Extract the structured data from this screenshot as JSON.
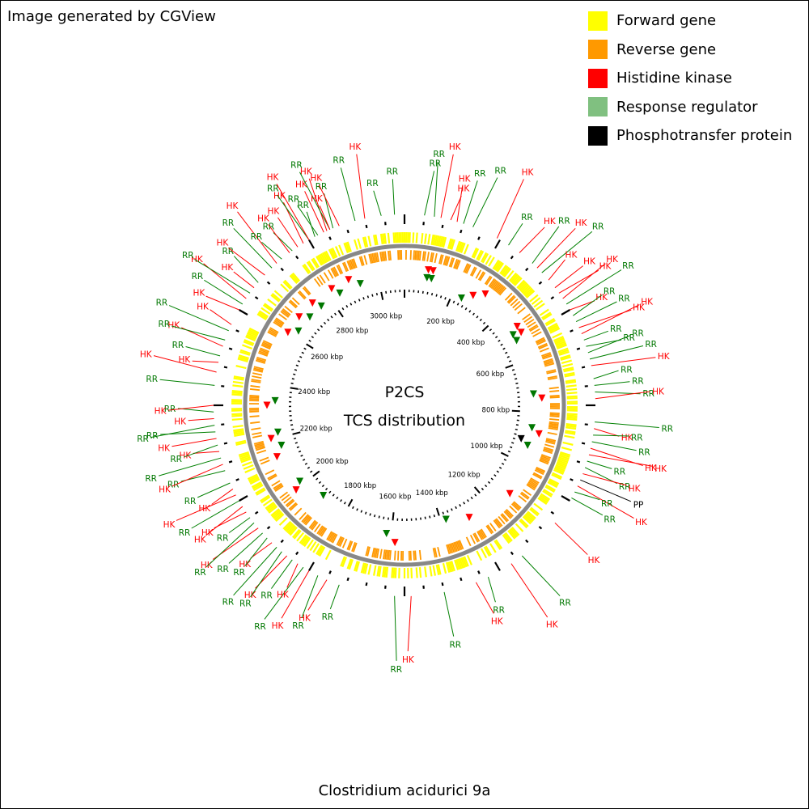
{
  "credit": "Image generated by CGView",
  "legend": [
    {
      "label": "Forward gene",
      "color": "#ffff00"
    },
    {
      "label": "Reverse gene",
      "color": "#ff9900"
    },
    {
      "label": "Histidine kinase",
      "color": "#ff0000"
    },
    {
      "label": "Response regulator",
      "color": "#80c080"
    },
    {
      "label": "Phosphotransfer protein",
      "color": "#000000"
    }
  ],
  "map": {
    "title": "P2CS",
    "subtitle": "TCS distribution",
    "genome_length_kbp": 3100,
    "tick_labels": [
      "200 kbp",
      "400 kbp",
      "600 kbp",
      "800 kbp",
      "1000 kbp",
      "1200 kbp",
      "1400 kbp",
      "1600 kbp",
      "1800 kbp",
      "2000 kbp",
      "2200 kbp",
      "2400 kbp",
      "2600 kbp",
      "2800 kbp",
      "3000 kbp"
    ],
    "tick_values_kbp": [
      200,
      400,
      600,
      800,
      1000,
      1200,
      1400,
      1600,
      1800,
      2000,
      2200,
      2400,
      2600,
      2800,
      3000
    ]
  },
  "organism": "Clostridium acidurici 9a",
  "features": [
    {
      "type": "RR",
      "angle": -36
    },
    {
      "type": "HK",
      "angle": -34
    },
    {
      "type": "HK",
      "angle": -32
    },
    {
      "type": "RR",
      "angle": -30
    },
    {
      "type": "HK",
      "angle": -30
    },
    {
      "type": "RR",
      "angle": -28
    },
    {
      "type": "RR",
      "angle": -27
    },
    {
      "type": "HK",
      "angle": -25
    },
    {
      "type": "HK",
      "angle": -24
    },
    {
      "type": "RR",
      "angle": -23
    },
    {
      "type": "HK",
      "angle": -23
    },
    {
      "type": "RR",
      "angle": -22
    },
    {
      "type": "HK",
      "angle": -20
    },
    {
      "type": "RR",
      "angle": -15
    },
    {
      "type": "HK",
      "angle": -12
    },
    {
      "type": "RR",
      "angle": -7
    },
    {
      "type": "RR",
      "angle": -3
    },
    {
      "type": "RR",
      "angle": 6
    },
    {
      "type": "RR",
      "angle": 9
    },
    {
      "type": "HK",
      "angle": 11
    },
    {
      "type": "HK",
      "angle": 14
    },
    {
      "type": "HK",
      "angle": 16
    },
    {
      "type": "RR",
      "angle": 18
    },
    {
      "type": "RR",
      "angle": 21
    },
    {
      "type": "HK",
      "angle": 29
    },
    {
      "type": "RR",
      "angle": 33
    },
    {
      "type": "HK",
      "angle": 37
    },
    {
      "type": "RR",
      "angle": 42
    },
    {
      "type": "HK",
      "angle": 44
    },
    {
      "type": "RR",
      "angle": 46
    },
    {
      "type": "HK",
      "angle": 49
    },
    {
      "type": "HK",
      "angle": 52
    },
    {
      "type": "HK",
      "angle": 54
    },
    {
      "type": "HK",
      "angle": 56
    },
    {
      "type": "RR",
      "angle": 58
    },
    {
      "type": "HK",
      "angle": 60
    },
    {
      "type": "RR",
      "angle": 62
    },
    {
      "type": "RR",
      "angle": 64
    },
    {
      "type": "HK",
      "angle": 66
    },
    {
      "type": "HK",
      "angle": 68
    },
    {
      "type": "RR",
      "angle": 70
    },
    {
      "type": "RR",
      "angle": 72
    },
    {
      "type": "RR",
      "angle": 74
    },
    {
      "type": "RR",
      "angle": 76
    },
    {
      "type": "HK",
      "angle": 78
    },
    {
      "type": "RR",
      "angle": 82
    },
    {
      "type": "RR",
      "angle": 84
    },
    {
      "type": "RR",
      "angle": 86
    },
    {
      "type": "HK",
      "angle": 88
    },
    {
      "type": "RR",
      "angle": 95
    },
    {
      "type": "HK",
      "angle": 97
    },
    {
      "type": "RR",
      "angle": 99
    },
    {
      "type": "RR",
      "angle": 101
    },
    {
      "type": "HK",
      "angle": 103
    },
    {
      "type": "HK",
      "angle": 105
    },
    {
      "type": "RR",
      "angle": 107
    },
    {
      "type": "RR",
      "angle": 109
    },
    {
      "type": "HK",
      "angle": 111
    },
    {
      "type": "PP",
      "angle": 113
    },
    {
      "type": "HK",
      "angle": 115
    },
    {
      "type": "RR",
      "angle": 117
    },
    {
      "type": "RR",
      "angle": 119
    },
    {
      "type": "HK",
      "angle": 128
    },
    {
      "type": "RR",
      "angle": 142
    },
    {
      "type": "HK",
      "angle": 146
    },
    {
      "type": "RR",
      "angle": 154
    },
    {
      "type": "HK",
      "angle": 158
    },
    {
      "type": "RR",
      "angle": 168
    },
    {
      "type": "HK",
      "angle": 178
    },
    {
      "type": "RR",
      "angle": 183
    },
    {
      "type": "RR",
      "angle": 200
    },
    {
      "type": "HK",
      "angle": 204
    },
    {
      "type": "RR",
      "angle": 207
    },
    {
      "type": "HK",
      "angle": 210
    },
    {
      "type": "RR",
      "angle": 212
    },
    {
      "type": "HK",
      "angle": 214
    },
    {
      "type": "RR",
      "angle": 216
    },
    {
      "type": "HK",
      "angle": 218
    },
    {
      "type": "RR",
      "angle": 220
    },
    {
      "type": "RR",
      "angle": 222
    },
    {
      "type": "HK",
      "angle": 224
    },
    {
      "type": "RR",
      "angle": 226
    },
    {
      "type": "RR",
      "angle": 228
    },
    {
      "type": "HK",
      "angle": 230
    },
    {
      "type": "RR",
      "angle": 232
    },
    {
      "type": "RR",
      "angle": 234
    },
    {
      "type": "HK",
      "angle": 236
    },
    {
      "type": "HK",
      "angle": 238
    },
    {
      "type": "RR",
      "angle": 240
    },
    {
      "type": "HK",
      "angle": 242
    },
    {
      "type": "HK",
      "angle": 244
    },
    {
      "type": "RR",
      "angle": 246
    },
    {
      "type": "RR",
      "angle": 250
    },
    {
      "type": "HK",
      "angle": 252
    },
    {
      "type": "RR",
      "angle": 254
    },
    {
      "type": "HK",
      "angle": 256
    },
    {
      "type": "RR",
      "angle": 258
    },
    {
      "type": "HK",
      "angle": 260
    },
    {
      "type": "RR",
      "angle": 262
    },
    {
      "type": "RR",
      "angle": 264
    },
    {
      "type": "HK",
      "angle": 266
    },
    {
      "type": "RR",
      "angle": 268
    },
    {
      "type": "HK",
      "angle": 270
    },
    {
      "type": "RR",
      "angle": 276
    },
    {
      "type": "HK",
      "angle": 280
    },
    {
      "type": "HK",
      "angle": 283
    },
    {
      "type": "RR",
      "angle": 285
    },
    {
      "type": "HK",
      "angle": 288
    },
    {
      "type": "RR",
      "angle": 290
    },
    {
      "type": "RR",
      "angle": 293
    },
    {
      "type": "HK",
      "angle": 295
    },
    {
      "type": "HK",
      "angle": 300
    },
    {
      "type": "RR",
      "angle": 302
    },
    {
      "type": "HK",
      "angle": 304
    },
    {
      "type": "RR",
      "angle": 306
    },
    {
      "type": "HK",
      "angle": 308
    },
    {
      "type": "RR",
      "angle": 310
    },
    {
      "type": "HK",
      "angle": 313
    },
    {
      "type": "RR",
      "angle": 316
    },
    {
      "type": "HK",
      "angle": 318
    },
    {
      "type": "RR",
      "angle": 320
    },
    {
      "type": "HK",
      "angle": 323
    }
  ],
  "markers": [
    {
      "type": "HK",
      "angle": 10,
      "track": 1
    },
    {
      "type": "HK",
      "angle": 12,
      "track": 1
    },
    {
      "type": "RR",
      "angle": 10,
      "track": 2
    },
    {
      "type": "RR",
      "angle": 12,
      "track": 2
    },
    {
      "type": "RR",
      "angle": 28,
      "track": 3
    },
    {
      "type": "HK",
      "angle": 32,
      "track": 2
    },
    {
      "type": "HK",
      "angle": 36,
      "track": 1
    },
    {
      "type": "HK",
      "angle": 55,
      "track": 1
    },
    {
      "type": "HK",
      "angle": 58,
      "track": 1
    },
    {
      "type": "RR",
      "angle": 57,
      "track": 2
    },
    {
      "type": "RR",
      "angle": 60,
      "track": 2
    },
    {
      "type": "RR",
      "angle": 85,
      "track": 2
    },
    {
      "type": "HK",
      "angle": 87,
      "track": 1
    },
    {
      "type": "RR",
      "angle": 100,
      "track": 2
    },
    {
      "type": "HK",
      "angle": 102,
      "track": 1
    },
    {
      "type": "PP",
      "angle": 106,
      "track": 3
    },
    {
      "type": "RR",
      "angle": 108,
      "track": 2
    },
    {
      "type": "HK",
      "angle": 130,
      "track": 1
    },
    {
      "type": "HK",
      "angle": 150,
      "track": 2
    },
    {
      "type": "RR",
      "angle": 160,
      "track": 3
    },
    {
      "type": "HK",
      "angle": 184,
      "track": 1
    },
    {
      "type": "RR",
      "angle": 188,
      "track": 2
    },
    {
      "type": "RR",
      "angle": 222,
      "track": 3
    },
    {
      "type": "HK",
      "angle": 232,
      "track": 1
    },
    {
      "type": "RR",
      "angle": 234,
      "track": 2
    },
    {
      "type": "HK",
      "angle": 248,
      "track": 1
    },
    {
      "type": "RR",
      "angle": 252,
      "track": 2
    },
    {
      "type": "HK",
      "angle": 256,
      "track": 1
    },
    {
      "type": "RR",
      "angle": 258,
      "track": 2
    },
    {
      "type": "HK",
      "angle": 270,
      "track": 1
    },
    {
      "type": "RR",
      "angle": 272,
      "track": 2
    },
    {
      "type": "HK",
      "angle": 302,
      "track": 1
    },
    {
      "type": "RR",
      "angle": 305,
      "track": 2
    },
    {
      "type": "HK",
      "angle": 310,
      "track": 1
    },
    {
      "type": "RR",
      "angle": 313,
      "track": 2
    },
    {
      "type": "HK",
      "angle": 318,
      "track": 1
    },
    {
      "type": "RR",
      "angle": 320,
      "track": 2
    },
    {
      "type": "HK",
      "angle": 328,
      "track": 1
    },
    {
      "type": "RR",
      "angle": 330,
      "track": 2
    },
    {
      "type": "HK",
      "angle": 336,
      "track": 1
    },
    {
      "type": "RR",
      "angle": 340,
      "track": 2
    }
  ]
}
